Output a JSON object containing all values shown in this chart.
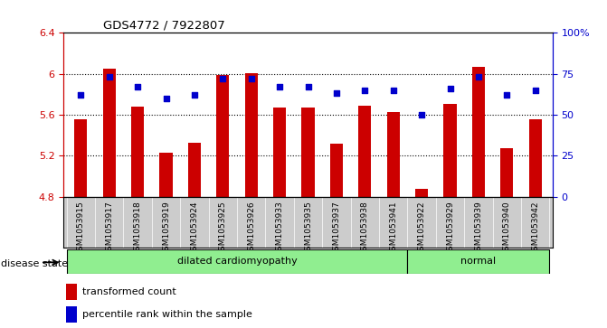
{
  "title": "GDS4772 / 7922807",
  "samples": [
    "GSM1053915",
    "GSM1053917",
    "GSM1053918",
    "GSM1053919",
    "GSM1053924",
    "GSM1053925",
    "GSM1053926",
    "GSM1053933",
    "GSM1053935",
    "GSM1053937",
    "GSM1053938",
    "GSM1053941",
    "GSM1053922",
    "GSM1053929",
    "GSM1053939",
    "GSM1053940",
    "GSM1053942"
  ],
  "bar_values": [
    5.56,
    6.05,
    5.68,
    5.23,
    5.33,
    5.99,
    6.01,
    5.67,
    5.67,
    5.32,
    5.69,
    5.63,
    4.88,
    5.71,
    6.07,
    5.27,
    5.56
  ],
  "dot_values": [
    62,
    73,
    67,
    60,
    62,
    72,
    72,
    67,
    67,
    63,
    65,
    65,
    50,
    66,
    73,
    62,
    65
  ],
  "ymin": 4.8,
  "ymax": 6.4,
  "yticks": [
    4.8,
    5.2,
    5.6,
    6.0,
    6.4
  ],
  "ytick_labels": [
    "4.8",
    "5.2",
    "5.6",
    "6",
    "6.4"
  ],
  "right_yticks": [
    0,
    25,
    50,
    75,
    100
  ],
  "right_ytick_labels": [
    "0",
    "25",
    "50",
    "75",
    "100%"
  ],
  "dilated_count": 12,
  "bar_color": "#CC0000",
  "dot_color": "#0000CC",
  "bar_bottom": 4.8,
  "left_axis_color": "#CC0000",
  "right_axis_color": "#0000CC",
  "bg_xtick_color": "#CCCCCC",
  "green_color": "#90EE90",
  "grid_yticks": [
    5.2,
    5.6,
    6.0
  ],
  "legend_labels": [
    "transformed count",
    "percentile rank within the sample"
  ],
  "disease_label": "disease state"
}
